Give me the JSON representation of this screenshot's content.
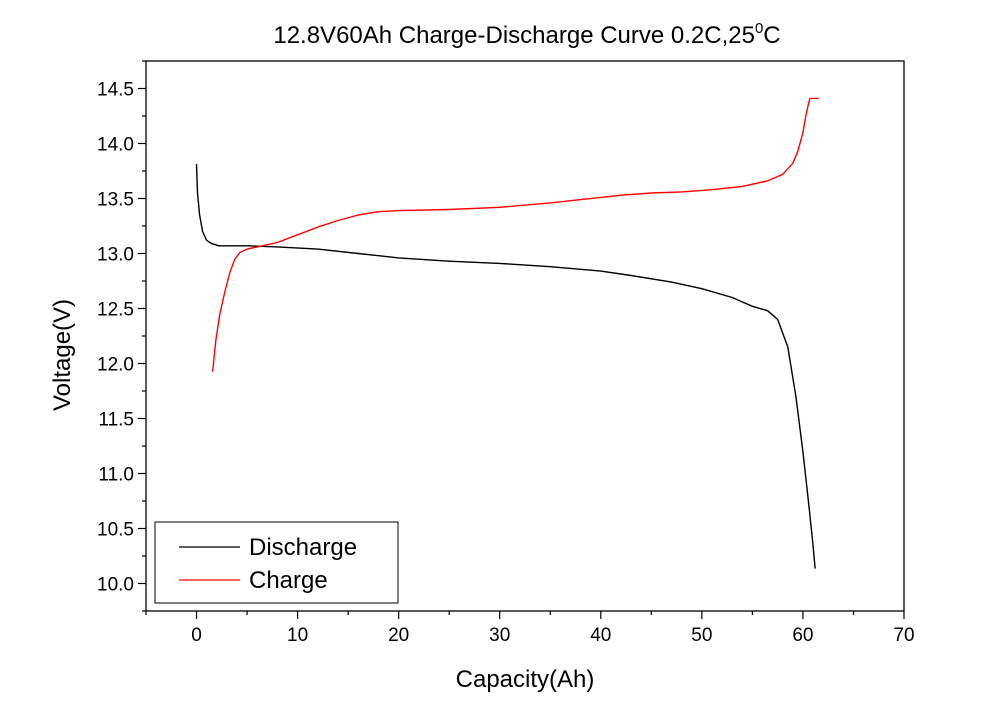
{
  "chart_data": {
    "type": "line",
    "title": "12.8V60Ah Charge-Discharge Curve  0.2C,25",
    "title_superscript": "0",
    "title_suffix": "C",
    "xlabel": "Capacity(Ah)",
    "ylabel": "Voltage(V)",
    "xlim": [
      -5,
      70
    ],
    "ylim": [
      9.75,
      14.75
    ],
    "xticks": [
      0,
      10,
      20,
      30,
      40,
      50,
      60,
      70
    ],
    "yticks": [
      10.0,
      10.5,
      11.0,
      11.5,
      12.0,
      12.5,
      13.0,
      13.5,
      14.0,
      14.5
    ],
    "xtick_labels": [
      "0",
      "10",
      "20",
      "30",
      "40",
      "50",
      "60",
      "70"
    ],
    "ytick_labels": [
      "10.0",
      "10.5",
      "11.0",
      "11.5",
      "12.0",
      "12.5",
      "13.0",
      "13.5",
      "14.0",
      "14.5"
    ],
    "grid": false,
    "legend_position": "bottom-left",
    "series": [
      {
        "name": "Discharge",
        "color": "#000000",
        "x": [
          0,
          0.1,
          0.3,
          0.6,
          1.0,
          1.5,
          2.2,
          3,
          5,
          8,
          12,
          16,
          20,
          25,
          30,
          35,
          40,
          43,
          47,
          50,
          53,
          55,
          56.5,
          57.5,
          58.5,
          59.3,
          60,
          60.6,
          61.0,
          61.2
        ],
        "values": [
          13.81,
          13.55,
          13.35,
          13.2,
          13.12,
          13.09,
          13.07,
          13.07,
          13.07,
          13.06,
          13.04,
          13.0,
          12.96,
          12.93,
          12.91,
          12.88,
          12.84,
          12.8,
          12.74,
          12.68,
          12.6,
          12.52,
          12.48,
          12.4,
          12.15,
          11.7,
          11.2,
          10.7,
          10.35,
          10.14
        ]
      },
      {
        "name": "Charge",
        "color": "#ff0000",
        "x": [
          1.6,
          1.9,
          2.3,
          2.8,
          3.3,
          3.8,
          4.3,
          5,
          6,
          8,
          10,
          12,
          14,
          16,
          18,
          20,
          25,
          30,
          35,
          38,
          40,
          42,
          45,
          48,
          51,
          54,
          56.5,
          58,
          59,
          59.5,
          60,
          60.3,
          60.6,
          60.7,
          61,
          61.5
        ],
        "values": [
          11.93,
          12.2,
          12.45,
          12.65,
          12.83,
          12.95,
          13.01,
          13.04,
          13.06,
          13.1,
          13.17,
          13.24,
          13.3,
          13.35,
          13.38,
          13.39,
          13.4,
          13.42,
          13.46,
          13.49,
          13.51,
          13.53,
          13.55,
          13.56,
          13.58,
          13.61,
          13.66,
          13.72,
          13.82,
          13.93,
          14.1,
          14.26,
          14.38,
          14.41,
          14.41,
          14.41
        ]
      }
    ]
  }
}
